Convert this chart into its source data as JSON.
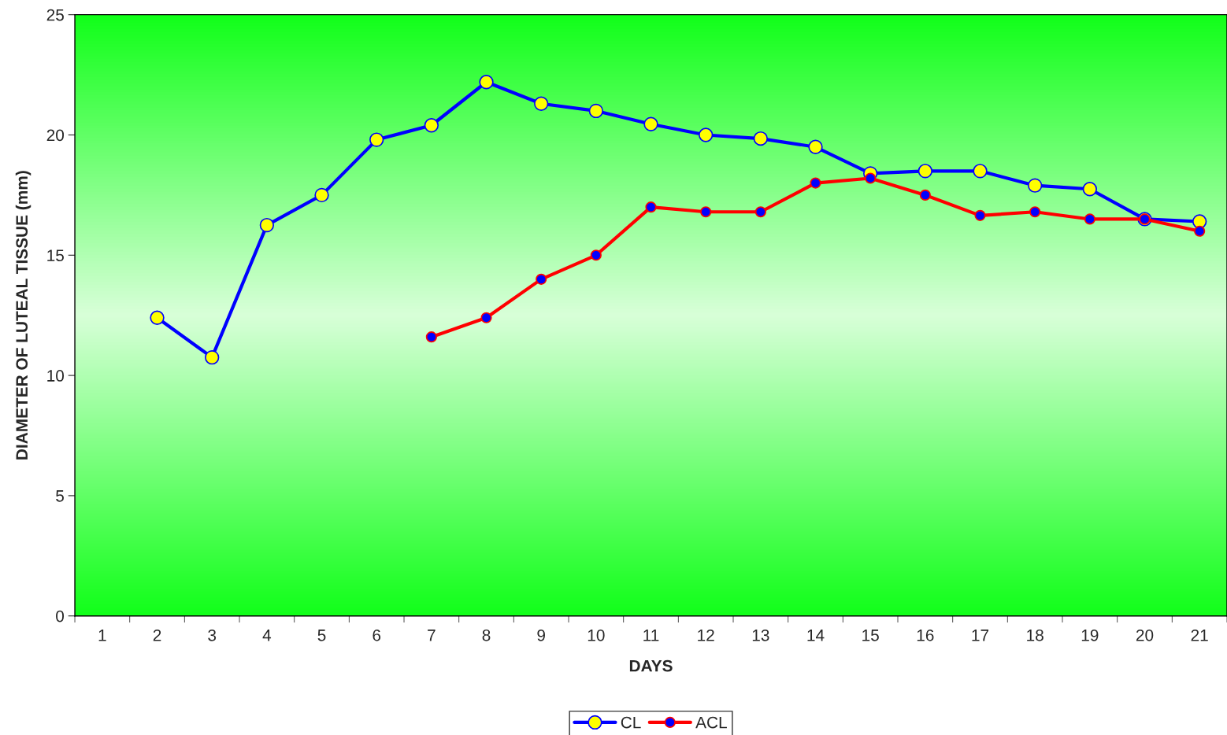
{
  "chart_data": {
    "type": "line",
    "xlabel": "DAYS",
    "ylabel": "DIAMETER OF LUTEAL TISSUE (mm)",
    "categories": [
      "1",
      "2",
      "3",
      "4",
      "5",
      "6",
      "7",
      "8",
      "9",
      "10",
      "11",
      "12",
      "13",
      "14",
      "15",
      "16",
      "17",
      "18",
      "19",
      "20",
      "21"
    ],
    "series": [
      {
        "name": "CL",
        "color": "#0000ff",
        "values": [
          null,
          12.4,
          10.75,
          16.25,
          17.5,
          19.8,
          20.4,
          22.2,
          21.3,
          21.0,
          20.45,
          20.0,
          19.85,
          19.5,
          18.4,
          18.5,
          18.5,
          17.9,
          17.75,
          16.5,
          16.4
        ]
      },
      {
        "name": "ACL",
        "color": "#ff0000",
        "values": [
          null,
          null,
          null,
          null,
          null,
          null,
          11.6,
          12.4,
          14.0,
          15.0,
          17.0,
          16.8,
          16.8,
          18.0,
          18.2,
          17.5,
          16.65,
          16.8,
          16.5,
          16.5,
          16.0
        ]
      }
    ],
    "ylim": [
      0,
      25
    ],
    "yticks": [
      0,
      5,
      10,
      15,
      20,
      25
    ],
    "grid": false,
    "legend": "bottom",
    "marker": "circle",
    "line_style": "solid"
  }
}
